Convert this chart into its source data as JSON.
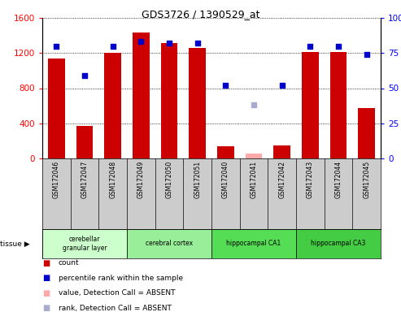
{
  "title": "GDS3726 / 1390529_at",
  "samples": [
    "GSM172046",
    "GSM172047",
    "GSM172048",
    "GSM172049",
    "GSM172050",
    "GSM172051",
    "GSM172040",
    "GSM172041",
    "GSM172042",
    "GSM172043",
    "GSM172044",
    "GSM172045"
  ],
  "count_values": [
    1140,
    370,
    1200,
    1430,
    1310,
    1260,
    140,
    null,
    150,
    1210,
    1210,
    570
  ],
  "count_absent": [
    null,
    null,
    null,
    null,
    null,
    null,
    null,
    60,
    null,
    null,
    null,
    null
  ],
  "rank_values": [
    80,
    59,
    80,
    83,
    82,
    82,
    52,
    null,
    52,
    80,
    80,
    74
  ],
  "rank_absent": [
    null,
    null,
    null,
    null,
    null,
    null,
    null,
    38,
    null,
    null,
    null,
    null
  ],
  "tissues": [
    {
      "label": "cerebellar\ngranular layer",
      "start": 0,
      "end": 3,
      "color": "#ccffcc"
    },
    {
      "label": "cerebral cortex",
      "start": 3,
      "end": 6,
      "color": "#99ee99"
    },
    {
      "label": "hippocampal CA1",
      "start": 6,
      "end": 9,
      "color": "#55dd55"
    },
    {
      "label": "hippocampal CA3",
      "start": 9,
      "end": 12,
      "color": "#44cc44"
    }
  ],
  "ylim_left": [
    0,
    1600
  ],
  "ylim_right": [
    0,
    100
  ],
  "left_ticks": [
    0,
    400,
    800,
    1200,
    1600
  ],
  "right_ticks": [
    0,
    25,
    50,
    75,
    100
  ],
  "bar_color": "#cc0000",
  "bar_absent_color": "#ffaaaa",
  "dot_color": "#0000cc",
  "dot_absent_color": "#aaaacc",
  "sample_bg_color": "#cccccc",
  "legend_items": [
    {
      "label": "count",
      "color": "#cc0000"
    },
    {
      "label": "percentile rank within the sample",
      "color": "#0000cc"
    },
    {
      "label": "value, Detection Call = ABSENT",
      "color": "#ffaaaa"
    },
    {
      "label": "rank, Detection Call = ABSENT",
      "color": "#aaaacc"
    }
  ]
}
